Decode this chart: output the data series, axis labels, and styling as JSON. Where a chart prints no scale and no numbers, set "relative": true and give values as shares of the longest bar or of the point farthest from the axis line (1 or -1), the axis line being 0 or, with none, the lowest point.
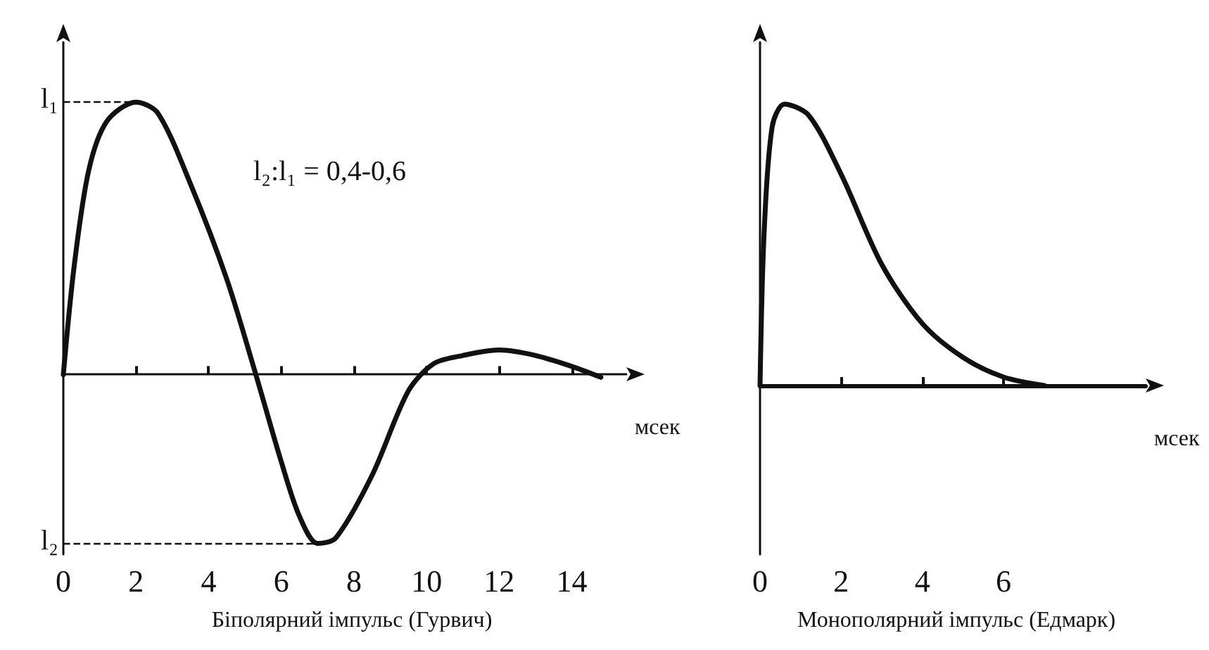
{
  "chart_data": [
    {
      "type": "line",
      "relative": true,
      "title": "Біполярний імпульс (Гурвич)",
      "xlabel": "мсек",
      "x": [
        0,
        0.3,
        0.7,
        1.2,
        2,
        2.6,
        3.5,
        4.5,
        5.3,
        6,
        6.5,
        7,
        7.5,
        8.5,
        9.5,
        10.2,
        11,
        12,
        13,
        14,
        14.8
      ],
      "series": [
        {
          "color": "#111111",
          "values": [
            0,
            0.4,
            0.75,
            0.93,
            1,
            0.96,
            0.7,
            0.35,
            0,
            -0.32,
            -0.52,
            -0.62,
            -0.6,
            -0.37,
            -0.06,
            0.04,
            0.07,
            0.09,
            0.07,
            0.03,
            -0.01
          ]
        }
      ],
      "xlim": [
        0,
        15.5
      ],
      "xticks": [
        0,
        2,
        4,
        6,
        8,
        10,
        12,
        14
      ],
      "marker": "none",
      "grid": false,
      "annotations": [
        "l₁",
        "l₂",
        "l₂:l₁ = 0,4-0,6"
      ]
    },
    {
      "type": "line",
      "relative": true,
      "title": "Монополярний імпульс (Едмарк)",
      "xlabel": "мсек",
      "x": [
        0,
        0.1,
        0.3,
        0.6,
        1.2,
        2,
        3,
        4,
        5,
        6,
        7
      ],
      "series": [
        {
          "color": "#111111",
          "values": [
            0,
            0.54,
            0.92,
            1,
            0.96,
            0.75,
            0.43,
            0.22,
            0.1,
            0.03,
            0
          ]
        }
      ],
      "xlim": [
        0,
        9.5
      ],
      "xticks": [
        0,
        2,
        4,
        6
      ],
      "marker": "none",
      "grid": false
    }
  ]
}
